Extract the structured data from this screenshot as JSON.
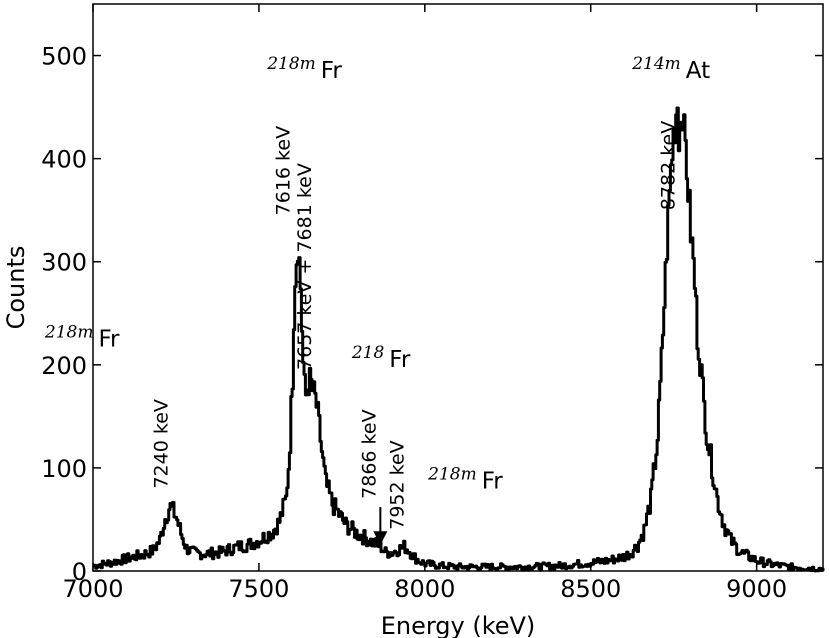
{
  "chart_data": {
    "type": "line",
    "xlabel": "Energy (keV)",
    "ylabel": "Counts",
    "xlim": [
      7000,
      9200
    ],
    "ylim": [
      0,
      550
    ],
    "xticks": [
      7000,
      7500,
      8000,
      8500,
      9000
    ],
    "yticks": [
      0,
      100,
      200,
      300,
      400,
      500
    ],
    "xtick_labels": [
      "7000",
      "7500",
      "8000",
      "8500",
      "9000"
    ],
    "ytick_labels": [
      "0",
      "100",
      "200",
      "300",
      "400",
      "500"
    ],
    "grid": false,
    "series": [
      {
        "x": [
          7000,
          7050,
          7100,
          7150,
          7180,
          7200,
          7215,
          7230,
          7240,
          7250,
          7265,
          7280,
          7300,
          7320,
          7350,
          7380,
          7400,
          7420,
          7440,
          7460,
          7480,
          7500,
          7520,
          7540,
          7560,
          7580,
          7590,
          7600,
          7606,
          7612,
          7616,
          7620,
          7625,
          7630,
          7635,
          7640,
          7645,
          7650,
          7655,
          7660,
          7670,
          7680,
          7690,
          7700,
          7720,
          7740,
          7760,
          7780,
          7800,
          7820,
          7840,
          7860,
          7870,
          7880,
          7900,
          7920,
          7935,
          7950,
          7965,
          7980,
          8000,
          8050,
          8100,
          8200,
          8300,
          8400,
          8500,
          8550,
          8600,
          8620,
          8640,
          8660,
          8680,
          8700,
          8710,
          8720,
          8730,
          8740,
          8750,
          8760,
          8765,
          8770,
          8775,
          8780,
          8785,
          8790,
          8800,
          8810,
          8820,
          8830,
          8840,
          8850,
          8860,
          8880,
          8900,
          8920,
          8950,
          9000,
          9050,
          9100,
          9150,
          9200
        ],
        "y": [
          5,
          8,
          12,
          16,
          20,
          30,
          50,
          63,
          58,
          52,
          35,
          22,
          18,
          17,
          17,
          18,
          20,
          22,
          24,
          25,
          27,
          30,
          34,
          38,
          48,
          70,
          110,
          190,
          280,
          305,
          320,
          300,
          270,
          215,
          180,
          170,
          180,
          185,
          182,
          175,
          165,
          140,
          110,
          85,
          65,
          55,
          45,
          40,
          35,
          32,
          28,
          25,
          22,
          18,
          18,
          21,
          24,
          20,
          14,
          10,
          7,
          5,
          4,
          4,
          4,
          5,
          8,
          10,
          14,
          18,
          25,
          40,
          70,
          130,
          190,
          260,
          330,
          390,
          430,
          455,
          420,
          440,
          460,
          420,
          410,
          380,
          330,
          290,
          230,
          200,
          160,
          130,
          110,
          70,
          45,
          30,
          18,
          10,
          6,
          4,
          3,
          2
        ]
      }
    ],
    "annotations": [
      {
        "text": "7240 keV",
        "x": 7225,
        "y": 80
      },
      {
        "text": "7616 keV",
        "x": 7592,
        "y": 345
      },
      {
        "text": "7657 keV + 7681 keV",
        "x": 7657,
        "y": 195
      },
      {
        "text": "7866 keV",
        "x": 7852,
        "y": 70
      },
      {
        "text": "7952 keV",
        "x": 7935,
        "y": 40
      },
      {
        "text": "8782 keV",
        "x": 8752,
        "y": 350
      }
    ],
    "arrow": {
      "x": 7866,
      "y_start": 62,
      "y_end": 25
    },
    "isotope_labels": [
      {
        "mass": "218m",
        "symbol": "Fr",
        "x": 6855,
        "y": 218
      },
      {
        "mass": "218m",
        "symbol": "Fr",
        "x": 7525,
        "y": 478
      },
      {
        "mass": "218",
        "symbol": "Fr",
        "x": 7780,
        "y": 198
      },
      {
        "mass": "218m",
        "symbol": "Fr",
        "x": 8010,
        "y": 80
      },
      {
        "mass": "214m",
        "symbol": "At",
        "x": 8625,
        "y": 478
      }
    ]
  }
}
